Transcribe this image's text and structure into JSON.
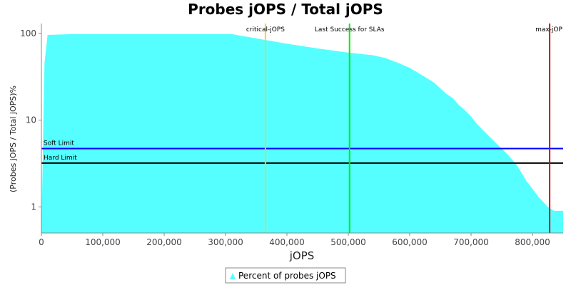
{
  "chart_data": {
    "type": "area",
    "title": "Probes jOPS / Total jOPS",
    "xlabel": "jOPS",
    "ylabel": "(Probes jOPS / Total jOPS)%",
    "x_scale": "linear",
    "y_scale": "log",
    "xlim": [
      0,
      850000
    ],
    "ylim": [
      0.5,
      130
    ],
    "x_ticks": [
      0,
      100000,
      200000,
      300000,
      400000,
      500000,
      600000,
      700000,
      800000
    ],
    "x_tick_labels": [
      "0",
      "100,000",
      "200,000",
      "300,000",
      "400,000",
      "500,000",
      "600,000",
      "700,000",
      "800,000"
    ],
    "y_ticks": [
      1,
      10,
      100
    ],
    "y_tick_labels": [
      "1",
      "10",
      "100"
    ],
    "grid": false,
    "legend_position": "bottom",
    "series": [
      {
        "name": "Percent of probes jOPS",
        "color": "#55ffff",
        "x": [
          0,
          5000,
          10000,
          50000,
          100000,
          200000,
          310000,
          365000,
          400000,
          450000,
          500000,
          540000,
          560000,
          580000,
          600000,
          620000,
          640000,
          660000,
          670000,
          680000,
          690000,
          700000,
          710000,
          720000,
          740000,
          760000,
          775000,
          790000,
          810000,
          825000,
          835000,
          850000
        ],
        "y": [
          0.5,
          45,
          96,
          98,
          98,
          98,
          98,
          84,
          76,
          67,
          60,
          56,
          52,
          46,
          40,
          33,
          27,
          20,
          18,
          15,
          13,
          11,
          9,
          7.6,
          5.5,
          4,
          3,
          2,
          1.3,
          1.0,
          0.9,
          0.9
        ]
      }
    ],
    "horizontal_lines": [
      {
        "label": "Soft Limit",
        "y": 4.7,
        "color": "#0000ff"
      },
      {
        "label": "Hard Limit",
        "y": 3.2,
        "color": "#000000"
      }
    ],
    "vertical_lines": [
      {
        "label": "critical-jOPS",
        "x": 365000,
        "color": "#ffcc33"
      },
      {
        "label": "Last Success for SLAs",
        "x": 502000,
        "color": "#00ee00"
      },
      {
        "label": "max-jOP",
        "x": 828000,
        "color": "#dd0000"
      }
    ]
  }
}
